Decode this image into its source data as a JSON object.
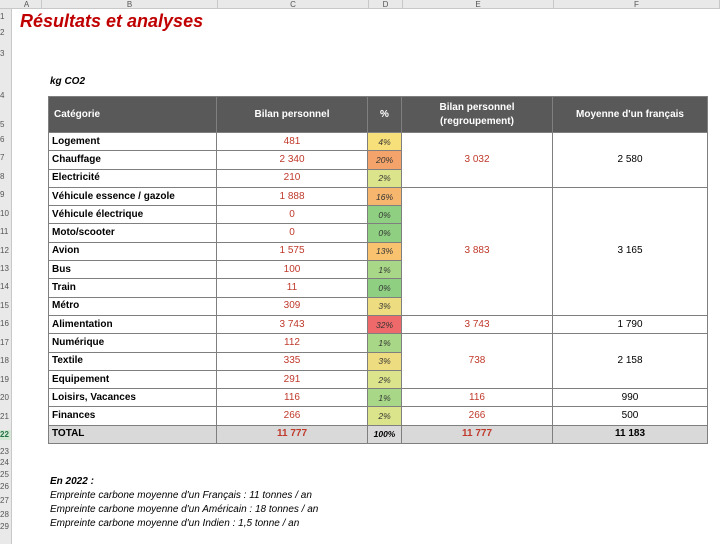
{
  "spreadsheet": {
    "columns": [
      "A",
      "B",
      "C",
      "D",
      "E",
      "F"
    ],
    "rows": [
      "1",
      "2",
      "3",
      "4",
      "5",
      "6",
      "7",
      "8",
      "9",
      "10",
      "11",
      "12",
      "13",
      "14",
      "15",
      "16",
      "17",
      "18",
      "19",
      "20",
      "21",
      "22",
      "23",
      "24",
      "25",
      "26",
      "27",
      "28",
      "29"
    ],
    "selected_row": "22"
  },
  "title": "Résultats et analyses",
  "unit_label": "kg CO2",
  "table": {
    "headers": {
      "category": "Catégorie",
      "personal": "Bilan personnel",
      "percent": "%",
      "grouped_line1": "Bilan personnel",
      "grouped_line2": "(regroupement)",
      "average": "Moyenne d'un français"
    },
    "groups": [
      {
        "grouped": "3 032",
        "average": "2 580",
        "rows": [
          {
            "category": "Logement",
            "value": "481",
            "pct": "4%",
            "color": "#f7e07a"
          },
          {
            "category": "Chauffage",
            "value": "2 340",
            "pct": "20%",
            "color": "#f4a46a"
          },
          {
            "category": "Electricité",
            "value": "210",
            "pct": "2%",
            "color": "#dbe48a"
          }
        ]
      },
      {
        "grouped": "3 883",
        "average": "3 165",
        "rows": [
          {
            "category": "Véhicule essence / gazole",
            "value": "1 888",
            "pct": "16%",
            "color": "#f6b66e"
          },
          {
            "category": "Véhicule électrique",
            "value": "0",
            "pct": "0%",
            "color": "#8fcf82"
          },
          {
            "category": "Moto/scooter",
            "value": "0",
            "pct": "0%",
            "color": "#8fcf82"
          },
          {
            "category": "Avion",
            "value": "1 575",
            "pct": "13%",
            "color": "#f8c26e"
          },
          {
            "category": "Bus",
            "value": "100",
            "pct": "1%",
            "color": "#a8d887"
          },
          {
            "category": "Train",
            "value": "11",
            "pct": "0%",
            "color": "#8fcf82"
          },
          {
            "category": "Métro",
            "value": "309",
            "pct": "3%",
            "color": "#eedd80"
          }
        ]
      },
      {
        "grouped": "3 743",
        "average": "1 790",
        "rows": [
          {
            "category": "Alimentation",
            "value": "3 743",
            "pct": "32%",
            "color": "#ee6a6a"
          }
        ]
      },
      {
        "grouped": "738",
        "average": "2 158",
        "rows": [
          {
            "category": "Numérique",
            "value": "112",
            "pct": "1%",
            "color": "#a8d887"
          },
          {
            "category": "Textile",
            "value": "335",
            "pct": "3%",
            "color": "#eedd80"
          },
          {
            "category": "Equipement",
            "value": "291",
            "pct": "2%",
            "color": "#dbe48a"
          }
        ]
      },
      {
        "grouped": "116",
        "average": "990",
        "rows": [
          {
            "category": "Loisirs, Vacances",
            "value": "116",
            "pct": "1%",
            "color": "#a8d887"
          }
        ]
      },
      {
        "grouped": "266",
        "average": "500",
        "rows": [
          {
            "category": "Finances",
            "value": "266",
            "pct": "2%",
            "color": "#dbe48a"
          }
        ]
      }
    ],
    "total": {
      "category": "TOTAL",
      "value": "11 777",
      "pct": "100%",
      "grouped": "11 777",
      "average": "11 183"
    }
  },
  "notes": {
    "heading": "En 2022 :",
    "lines": [
      "Empreinte carbone moyenne d'un Français : 11 tonnes / an",
      "Empreinte carbone moyenne d'un Américain : 18 tonnes / an",
      "Empreinte carbone moyenne d'un Indien : 1,5 tonne / an"
    ]
  }
}
